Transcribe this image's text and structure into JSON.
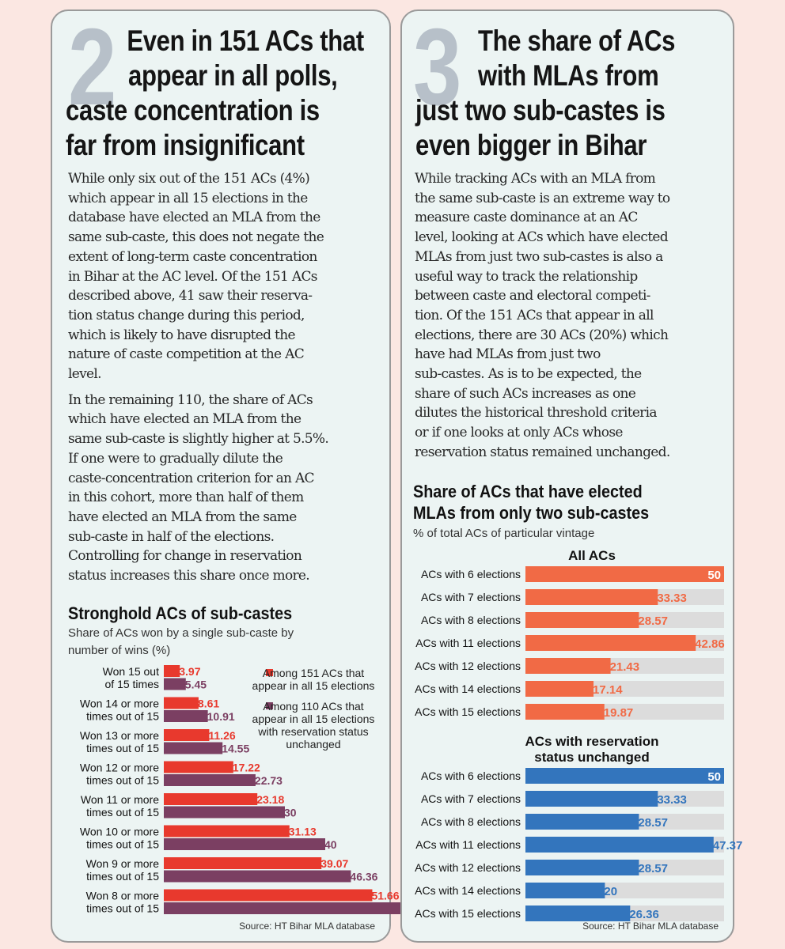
{
  "panel2": {
    "number": "2",
    "headline": [
      "Even in 151 ACs that",
      "appear in all polls,",
      "caste concentration is",
      "far from insignificant"
    ],
    "para1": [
      "While only six out of the 151 ACs (4%)",
      "which appear in all 15 elections in the",
      "database have elected an MLA from the",
      "same sub-caste, this does not negate the",
      "extent of long-term caste concentration",
      "in Bihar at the AC level. Of the 151 ACs",
      "described above, 41 saw their reserva-",
      "tion status change during this period,",
      "which is likely to have disrupted the",
      "nature of caste competition at the AC",
      "level."
    ],
    "para2": [
      "In the remaining 110, the share of ACs",
      "which have elected an MLA from the",
      "same sub-caste is slightly higher at 5.5%.",
      "If one were to gradually dilute the",
      "caste-concentration criterion for an AC",
      "in this cohort, more than half of them",
      "have elected an MLA from the same",
      "sub-caste in half of the elections.",
      "Controlling for change in reservation",
      "status increases this share once more."
    ],
    "source": "Source: HT Bihar MLA database"
  },
  "panel3": {
    "number": "3",
    "headline": [
      "The share of ACs",
      "with MLAs from",
      "just two sub-castes is",
      "even bigger in Bihar"
    ],
    "para1": [
      "While tracking ACs with an MLA from",
      "the same sub-caste is an extreme way to",
      "measure caste dominance at an AC",
      "level, looking at ACs which have elected",
      "MLAs from just two sub-castes is also a",
      "useful way to track the relationship",
      "between caste and electoral competi-",
      "tion. Of the 151 ACs that appear in all",
      "elections, there are 30 ACs (20%) which",
      "have had MLAs from just two",
      "sub-castes. As is to be expected, the",
      "share of such ACs increases as one",
      "dilutes the historical threshold criteria",
      "or if one looks at only ACs whose",
      "reservation status remained unchanged."
    ],
    "source": "Source: HT Bihar MLA database"
  },
  "chart_data": [
    {
      "type": "bar",
      "orientation": "horizontal",
      "title": [
        "Stronghold ACs of sub-castes"
      ],
      "subtitle": [
        "Share of ACs won by a single sub-caste by",
        "number of wins (%)"
      ],
      "categories": [
        [
          "Won 15 out",
          "of 15 times"
        ],
        [
          "Won 14 or more",
          "times out of 15"
        ],
        [
          "Won 13 or more",
          "times out of 15"
        ],
        [
          "Won 12 or more",
          "times out of 15"
        ],
        [
          "Won 11 or more",
          "times out of 15"
        ],
        [
          "Won 10 or more",
          "times out of 15"
        ],
        [
          "Won 9 or more",
          "times out of 15"
        ],
        [
          "Won 8 or more",
          "times out of 15"
        ]
      ],
      "series": [
        {
          "name": [
            "Among 151 ACs that",
            "appear in all 15 elections"
          ],
          "color": "#e8392d",
          "values": [
            3.97,
            8.61,
            11.26,
            17.22,
            23.18,
            31.13,
            39.07,
            51.66
          ]
        },
        {
          "name": [
            "Among 110 ACs that",
            "appear in all 15 elections",
            "with reservation status",
            "unchanged"
          ],
          "color": "#7b3f62",
          "values": [
            5.45,
            10.91,
            14.55,
            22.73,
            30,
            40,
            46.36,
            60
          ]
        }
      ],
      "legend": "top-right"
    },
    {
      "type": "bar",
      "orientation": "horizontal",
      "title": [
        "Share of ACs that have elected",
        "MLAs from only two sub-castes"
      ],
      "subtitle": [
        "% of total ACs of particular vintage"
      ],
      "groups": [
        {
          "label": [
            "All ACs"
          ],
          "color": "#f16a45",
          "categories": [
            "ACs with 6 elections",
            "ACs with 7 elections",
            "ACs with 8 elections",
            "ACs with 11 elections",
            "ACs with 12 elections",
            "ACs with 14 elections",
            "ACs with 15 elections"
          ],
          "values": [
            50,
            33.33,
            28.57,
            42.86,
            21.43,
            17.14,
            19.87
          ]
        },
        {
          "label": [
            "ACs with reservation",
            "status unchanged"
          ],
          "color": "#3375bd",
          "categories": [
            "ACs with 6 elections",
            "ACs with 7 elections",
            "ACs with 8 elections",
            "ACs with 11 elections",
            "ACs with 12 elections",
            "ACs with 14 elections",
            "ACs with 15 elections"
          ],
          "values": [
            50,
            33.33,
            28.57,
            47.37,
            28.57,
            20,
            26.36
          ]
        }
      ],
      "xlim": [
        0,
        50
      ],
      "track_color": "#dcdcdc"
    }
  ]
}
